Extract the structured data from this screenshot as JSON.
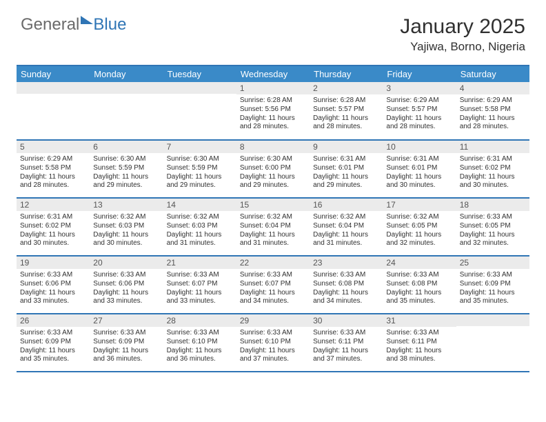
{
  "brand": {
    "part1": "General",
    "part2": "Blue"
  },
  "title": "January 2025",
  "location": "Yajiwa, Borno, Nigeria",
  "colors": {
    "header_bg": "#3a8ac8",
    "header_border": "#2f75b5",
    "daynum_bg": "#ebebeb",
    "text": "#303030",
    "brand_gray": "#6a6a6a",
    "brand_blue": "#2f75b5",
    "page_bg": "#ffffff"
  },
  "day_headers": [
    "Sunday",
    "Monday",
    "Tuesday",
    "Wednesday",
    "Thursday",
    "Friday",
    "Saturday"
  ],
  "grid": {
    "rows": 5,
    "cols": 7,
    "first_weekday_index": 3,
    "days_in_month": 31
  },
  "days": {
    "1": {
      "sunrise": "6:28 AM",
      "sunset": "5:56 PM",
      "daylight": "11 hours and 28 minutes."
    },
    "2": {
      "sunrise": "6:28 AM",
      "sunset": "5:57 PM",
      "daylight": "11 hours and 28 minutes."
    },
    "3": {
      "sunrise": "6:29 AM",
      "sunset": "5:57 PM",
      "daylight": "11 hours and 28 minutes."
    },
    "4": {
      "sunrise": "6:29 AM",
      "sunset": "5:58 PM",
      "daylight": "11 hours and 28 minutes."
    },
    "5": {
      "sunrise": "6:29 AM",
      "sunset": "5:58 PM",
      "daylight": "11 hours and 28 minutes."
    },
    "6": {
      "sunrise": "6:30 AM",
      "sunset": "5:59 PM",
      "daylight": "11 hours and 29 minutes."
    },
    "7": {
      "sunrise": "6:30 AM",
      "sunset": "5:59 PM",
      "daylight": "11 hours and 29 minutes."
    },
    "8": {
      "sunrise": "6:30 AM",
      "sunset": "6:00 PM",
      "daylight": "11 hours and 29 minutes."
    },
    "9": {
      "sunrise": "6:31 AM",
      "sunset": "6:01 PM",
      "daylight": "11 hours and 29 minutes."
    },
    "10": {
      "sunrise": "6:31 AM",
      "sunset": "6:01 PM",
      "daylight": "11 hours and 30 minutes."
    },
    "11": {
      "sunrise": "6:31 AM",
      "sunset": "6:02 PM",
      "daylight": "11 hours and 30 minutes."
    },
    "12": {
      "sunrise": "6:31 AM",
      "sunset": "6:02 PM",
      "daylight": "11 hours and 30 minutes."
    },
    "13": {
      "sunrise": "6:32 AM",
      "sunset": "6:03 PM",
      "daylight": "11 hours and 30 minutes."
    },
    "14": {
      "sunrise": "6:32 AM",
      "sunset": "6:03 PM",
      "daylight": "11 hours and 31 minutes."
    },
    "15": {
      "sunrise": "6:32 AM",
      "sunset": "6:04 PM",
      "daylight": "11 hours and 31 minutes."
    },
    "16": {
      "sunrise": "6:32 AM",
      "sunset": "6:04 PM",
      "daylight": "11 hours and 31 minutes."
    },
    "17": {
      "sunrise": "6:32 AM",
      "sunset": "6:05 PM",
      "daylight": "11 hours and 32 minutes."
    },
    "18": {
      "sunrise": "6:33 AM",
      "sunset": "6:05 PM",
      "daylight": "11 hours and 32 minutes."
    },
    "19": {
      "sunrise": "6:33 AM",
      "sunset": "6:06 PM",
      "daylight": "11 hours and 33 minutes."
    },
    "20": {
      "sunrise": "6:33 AM",
      "sunset": "6:06 PM",
      "daylight": "11 hours and 33 minutes."
    },
    "21": {
      "sunrise": "6:33 AM",
      "sunset": "6:07 PM",
      "daylight": "11 hours and 33 minutes."
    },
    "22": {
      "sunrise": "6:33 AM",
      "sunset": "6:07 PM",
      "daylight": "11 hours and 34 minutes."
    },
    "23": {
      "sunrise": "6:33 AM",
      "sunset": "6:08 PM",
      "daylight": "11 hours and 34 minutes."
    },
    "24": {
      "sunrise": "6:33 AM",
      "sunset": "6:08 PM",
      "daylight": "11 hours and 35 minutes."
    },
    "25": {
      "sunrise": "6:33 AM",
      "sunset": "6:09 PM",
      "daylight": "11 hours and 35 minutes."
    },
    "26": {
      "sunrise": "6:33 AM",
      "sunset": "6:09 PM",
      "daylight": "11 hours and 35 minutes."
    },
    "27": {
      "sunrise": "6:33 AM",
      "sunset": "6:09 PM",
      "daylight": "11 hours and 36 minutes."
    },
    "28": {
      "sunrise": "6:33 AM",
      "sunset": "6:10 PM",
      "daylight": "11 hours and 36 minutes."
    },
    "29": {
      "sunrise": "6:33 AM",
      "sunset": "6:10 PM",
      "daylight": "11 hours and 37 minutes."
    },
    "30": {
      "sunrise": "6:33 AM",
      "sunset": "6:11 PM",
      "daylight": "11 hours and 37 minutes."
    },
    "31": {
      "sunrise": "6:33 AM",
      "sunset": "6:11 PM",
      "daylight": "11 hours and 38 minutes."
    }
  },
  "labels": {
    "sunrise": "Sunrise:",
    "sunset": "Sunset:",
    "daylight": "Daylight:"
  }
}
